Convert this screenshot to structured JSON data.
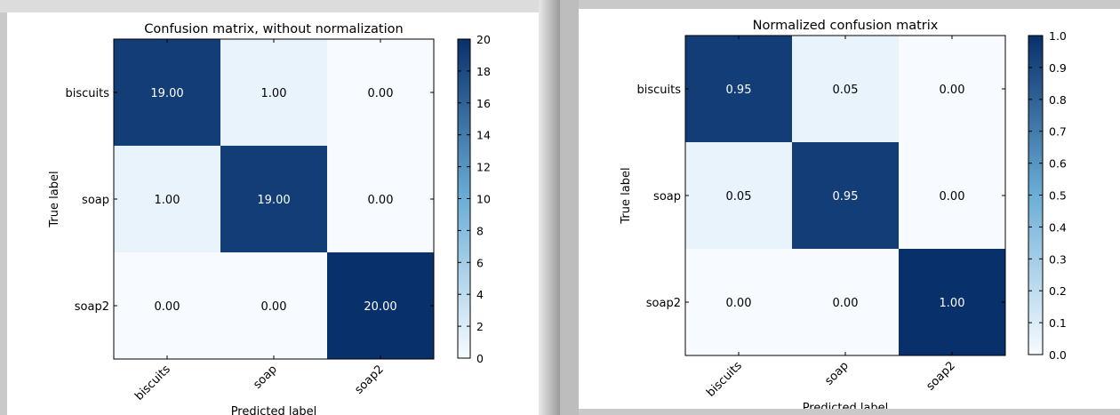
{
  "chart_data": [
    {
      "type": "heatmap",
      "title": "Confusion matrix, without normalization",
      "xlabel": "Predicted label",
      "ylabel": "True label",
      "x_categories": [
        "biscuits",
        "soap",
        "soap2"
      ],
      "y_categories": [
        "biscuits",
        "soap",
        "soap2"
      ],
      "values": [
        [
          19,
          1,
          0
        ],
        [
          1,
          19,
          0
        ],
        [
          0,
          0,
          20
        ]
      ],
      "cell_labels": [
        [
          "19.00",
          "1.00",
          "0.00"
        ],
        [
          "1.00",
          "19.00",
          "0.00"
        ],
        [
          "0.00",
          "0.00",
          "20.00"
        ]
      ],
      "colormap": "Blues",
      "colorbar": {
        "range": [
          0,
          20
        ],
        "ticks": [
          "0",
          "2",
          "4",
          "6",
          "8",
          "10",
          "12",
          "14",
          "16",
          "18",
          "20"
        ]
      }
    },
    {
      "type": "heatmap",
      "title": "Normalized confusion matrix",
      "xlabel": "Predicted label",
      "ylabel": "True label",
      "x_categories": [
        "biscuits",
        "soap",
        "soap2"
      ],
      "y_categories": [
        "biscuits",
        "soap",
        "soap2"
      ],
      "values": [
        [
          0.95,
          0.05,
          0.0
        ],
        [
          0.05,
          0.95,
          0.0
        ],
        [
          0.0,
          0.0,
          1.0
        ]
      ],
      "cell_labels": [
        [
          "0.95",
          "0.05",
          "0.00"
        ],
        [
          "0.05",
          "0.95",
          "0.00"
        ],
        [
          "0.00",
          "0.00",
          "1.00"
        ]
      ],
      "colormap": "Blues",
      "colorbar": {
        "range": [
          0.0,
          1.0
        ],
        "ticks": [
          "0.0",
          "0.1",
          "0.2",
          "0.3",
          "0.4",
          "0.5",
          "0.6",
          "0.7",
          "0.8",
          "0.9",
          "1.0"
        ]
      }
    }
  ],
  "colors": {
    "cmap_low": "#f7fbff",
    "cmap_mid": "#6baed6",
    "cmap_high": "#08306b"
  }
}
